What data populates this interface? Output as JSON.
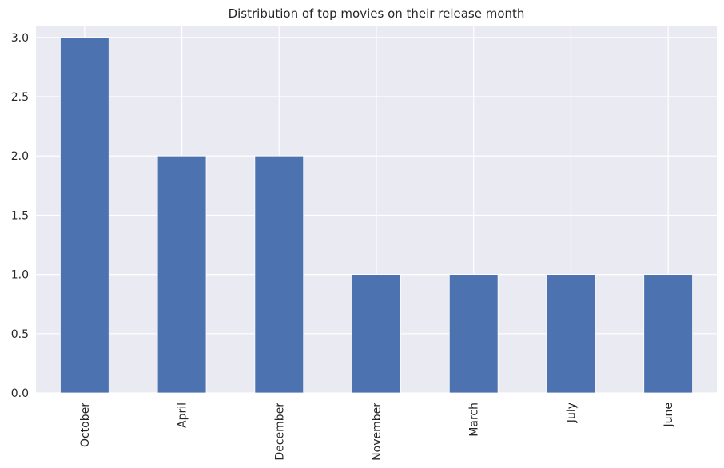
{
  "chart_data": {
    "type": "bar",
    "title": "Distribution of top movies on their release month",
    "xlabel": "",
    "ylabel": "",
    "categories": [
      "October",
      "April",
      "December",
      "November",
      "March",
      "July",
      "June"
    ],
    "values": [
      3,
      2,
      2,
      1,
      1,
      1,
      1
    ],
    "ylim": [
      0,
      3.1
    ],
    "yticks": [
      "0.0",
      "0.5",
      "1.0",
      "1.5",
      "2.0",
      "2.5",
      "3.0"
    ],
    "grid": true,
    "legend": "none",
    "colors": {
      "bar": "#4c72b0",
      "plot_background": "#eaeaf2",
      "grid": "#ffffff"
    }
  }
}
